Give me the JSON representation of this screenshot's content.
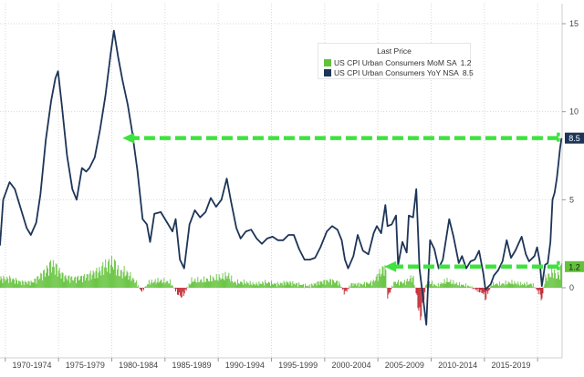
{
  "chart_data": {
    "type": "line",
    "x_start_year": 1969.5,
    "x_end_year": 2022.3,
    "categories": [
      "1970-1974",
      "1975-1979",
      "1980-1984",
      "1985-1989",
      "1990-1994",
      "1995-1999",
      "2000-2004",
      "2005-2009",
      "2010-2014",
      "2015-2019"
    ],
    "y_ticks": [
      15,
      10,
      5,
      0
    ],
    "ylim": [
      -2.5,
      15.5
    ],
    "grid": true,
    "legend": {
      "title": "Last Price",
      "placement": "top-right",
      "entries": [
        {
          "name": "US CPI Urban Consumers MoM SA",
          "value": "1.2",
          "color": "#62c23a"
        },
        {
          "name": "US CPI Urban Consumers YoY NSA",
          "value": "8.5",
          "color": "#1d3557"
        }
      ]
    },
    "series": [
      {
        "name": "US CPI Urban Consumers YoY NSA",
        "kind": "line",
        "color": "#1d3557",
        "last_value": "8.5",
        "points": [
          [
            1969.5,
            2.4
          ],
          [
            1969.8,
            5.0
          ],
          [
            1970.4,
            6.0
          ],
          [
            1970.9,
            5.6
          ],
          [
            1971.5,
            4.4
          ],
          [
            1972.0,
            3.4
          ],
          [
            1972.4,
            3.0
          ],
          [
            1972.9,
            3.7
          ],
          [
            1973.3,
            5.3
          ],
          [
            1973.8,
            8.4
          ],
          [
            1974.3,
            10.6
          ],
          [
            1974.7,
            11.9
          ],
          [
            1974.95,
            12.3
          ],
          [
            1975.3,
            10.4
          ],
          [
            1975.8,
            7.5
          ],
          [
            1976.3,
            5.6
          ],
          [
            1976.7,
            5.0
          ],
          [
            1977.2,
            6.8
          ],
          [
            1977.6,
            6.6
          ],
          [
            1977.9,
            6.8
          ],
          [
            1978.4,
            7.4
          ],
          [
            1978.9,
            9.0
          ],
          [
            1979.4,
            10.9
          ],
          [
            1979.9,
            13.3
          ],
          [
            1980.2,
            14.6
          ],
          [
            1980.6,
            13.1
          ],
          [
            1981.0,
            11.8
          ],
          [
            1981.5,
            10.4
          ],
          [
            1981.9,
            8.9
          ],
          [
            1982.4,
            6.7
          ],
          [
            1982.9,
            3.9
          ],
          [
            1983.3,
            3.6
          ],
          [
            1983.6,
            2.6
          ],
          [
            1984.0,
            4.2
          ],
          [
            1984.6,
            4.3
          ],
          [
            1985.2,
            3.7
          ],
          [
            1985.7,
            3.2
          ],
          [
            1986.0,
            3.9
          ],
          [
            1986.4,
            1.6
          ],
          [
            1986.8,
            1.1
          ],
          [
            1987.3,
            3.6
          ],
          [
            1987.8,
            4.4
          ],
          [
            1988.3,
            4.0
          ],
          [
            1988.8,
            4.3
          ],
          [
            1989.3,
            5.1
          ],
          [
            1989.8,
            4.6
          ],
          [
            1990.3,
            5.0
          ],
          [
            1990.8,
            6.2
          ],
          [
            1991.2,
            4.9
          ],
          [
            1991.7,
            3.4
          ],
          [
            1992.1,
            2.8
          ],
          [
            1992.6,
            3.2
          ],
          [
            1993.1,
            3.3
          ],
          [
            1993.6,
            2.8
          ],
          [
            1994.1,
            2.5
          ],
          [
            1994.6,
            2.8
          ],
          [
            1995.1,
            2.9
          ],
          [
            1995.6,
            2.7
          ],
          [
            1996.1,
            2.7
          ],
          [
            1996.6,
            3.0
          ],
          [
            1997.1,
            3.0
          ],
          [
            1997.6,
            2.2
          ],
          [
            1998.1,
            1.6
          ],
          [
            1998.6,
            1.6
          ],
          [
            1999.1,
            1.7
          ],
          [
            1999.6,
            2.3
          ],
          [
            2000.2,
            3.2
          ],
          [
            2000.7,
            3.5
          ],
          [
            2001.2,
            3.3
          ],
          [
            2001.6,
            2.7
          ],
          [
            2001.9,
            1.6
          ],
          [
            2002.2,
            1.1
          ],
          [
            2002.7,
            1.8
          ],
          [
            2003.1,
            3.0
          ],
          [
            2003.6,
            2.1
          ],
          [
            2004.1,
            1.9
          ],
          [
            2004.6,
            3.1
          ],
          [
            2004.9,
            3.5
          ],
          [
            2005.3,
            3.1
          ],
          [
            2005.7,
            4.7
          ],
          [
            2005.9,
            3.5
          ],
          [
            2006.3,
            3.6
          ],
          [
            2006.7,
            4.1
          ],
          [
            2006.9,
            1.3
          ],
          [
            2007.3,
            2.6
          ],
          [
            2007.7,
            2.0
          ],
          [
            2007.9,
            4.1
          ],
          [
            2008.3,
            4.0
          ],
          [
            2008.6,
            5.6
          ],
          [
            2008.9,
            1.1
          ],
          [
            2009.2,
            -0.4
          ],
          [
            2009.55,
            -2.1
          ],
          [
            2009.9,
            2.7
          ],
          [
            2010.3,
            2.2
          ],
          [
            2010.7,
            1.1
          ],
          [
            2011.1,
            1.6
          ],
          [
            2011.7,
            3.9
          ],
          [
            2012.1,
            2.9
          ],
          [
            2012.6,
            1.4
          ],
          [
            2012.9,
            1.8
          ],
          [
            2013.3,
            1.1
          ],
          [
            2013.7,
            1.5
          ],
          [
            2014.1,
            1.6
          ],
          [
            2014.5,
            2.1
          ],
          [
            2014.9,
            0.8
          ],
          [
            2015.1,
            -0.1
          ],
          [
            2015.6,
            0.2
          ],
          [
            2015.9,
            0.7
          ],
          [
            2016.3,
            1.0
          ],
          [
            2016.7,
            1.5
          ],
          [
            2017.1,
            2.7
          ],
          [
            2017.5,
            1.7
          ],
          [
            2017.9,
            2.1
          ],
          [
            2018.5,
            2.9
          ],
          [
            2018.9,
            1.9
          ],
          [
            2019.2,
            1.5
          ],
          [
            2019.7,
            1.8
          ],
          [
            2019.95,
            2.3
          ],
          [
            2020.2,
            1.5
          ],
          [
            2020.4,
            0.1
          ],
          [
            2020.7,
            1.3
          ],
          [
            2020.95,
            1.4
          ],
          [
            2021.2,
            2.6
          ],
          [
            2021.4,
            5.0
          ],
          [
            2021.6,
            5.4
          ],
          [
            2021.8,
            6.2
          ],
          [
            2021.95,
            7.0
          ],
          [
            2022.1,
            7.9
          ],
          [
            2022.25,
            8.5
          ]
        ]
      },
      {
        "name": "US CPI Urban Consumers MoM SA",
        "kind": "bar",
        "color_pos": "#62c23a",
        "color_neg": "#c0202a",
        "last_value": "1.2",
        "points": [
          [
            1969.5,
            0.5
          ],
          [
            1970.5,
            0.5
          ],
          [
            1971.5,
            0.3
          ],
          [
            1972.5,
            0.3
          ],
          [
            1973.2,
            0.6
          ],
          [
            1973.8,
            0.9
          ],
          [
            1974.3,
            1.3
          ],
          [
            1974.8,
            1.1
          ],
          [
            1975.5,
            0.6
          ],
          [
            1976.5,
            0.5
          ],
          [
            1977.5,
            0.6
          ],
          [
            1978.3,
            0.8
          ],
          [
            1978.8,
            0.9
          ],
          [
            1979.3,
            1.2
          ],
          [
            1979.8,
            1.3
          ],
          [
            1980.2,
            1.4
          ],
          [
            1980.7,
            0.8
          ],
          [
            1981.2,
            0.9
          ],
          [
            1981.8,
            0.6
          ],
          [
            1982.3,
            0.3
          ],
          [
            1982.8,
            -0.2
          ],
          [
            1983.5,
            0.3
          ],
          [
            1984.5,
            0.4
          ],
          [
            1985.5,
            0.3
          ],
          [
            1986.3,
            -0.4
          ],
          [
            1986.6,
            -0.5
          ],
          [
            1987.5,
            0.4
          ],
          [
            1988.5,
            0.4
          ],
          [
            1989.5,
            0.5
          ],
          [
            1990.5,
            0.6
          ],
          [
            1990.9,
            0.7
          ],
          [
            1991.5,
            0.3
          ],
          [
            1992.5,
            0.3
          ],
          [
            1993.5,
            0.2
          ],
          [
            1994.5,
            0.3
          ],
          [
            1995.5,
            0.2
          ],
          [
            1996.5,
            0.3
          ],
          [
            1997.5,
            0.2
          ],
          [
            1998.5,
            0.1
          ],
          [
            1999.5,
            0.3
          ],
          [
            2000.5,
            0.4
          ],
          [
            2001.3,
            0.3
          ],
          [
            2001.9,
            -0.3
          ],
          [
            2002.5,
            0.2
          ],
          [
            2003.5,
            0.2
          ],
          [
            2004.5,
            0.3
          ],
          [
            2005.7,
            1.2
          ],
          [
            2005.9,
            -0.6
          ],
          [
            2006.5,
            0.3
          ],
          [
            2007.5,
            0.3
          ],
          [
            2008.3,
            0.6
          ],
          [
            2008.8,
            -1.0
          ],
          [
            2008.9,
            -1.8
          ],
          [
            2009.1,
            -1.3
          ],
          [
            2009.6,
            0.4
          ],
          [
            2010.5,
            0.1
          ],
          [
            2011.5,
            0.4
          ],
          [
            2012.5,
            0.2
          ],
          [
            2013.5,
            0.1
          ],
          [
            2014.9,
            -0.3
          ],
          [
            2015.1,
            -0.6
          ],
          [
            2015.7,
            0.2
          ],
          [
            2016.5,
            0.2
          ],
          [
            2017.5,
            0.3
          ],
          [
            2018.5,
            0.2
          ],
          [
            2019.5,
            0.2
          ],
          [
            2020.3,
            -0.4
          ],
          [
            2020.4,
            -0.8
          ],
          [
            2020.7,
            0.5
          ],
          [
            2021.3,
            0.8
          ],
          [
            2021.5,
            0.9
          ],
          [
            2021.8,
            0.6
          ],
          [
            2022.1,
            0.8
          ],
          [
            2022.25,
            1.2
          ]
        ]
      }
    ],
    "annotations": [
      {
        "kind": "dashed-arrow",
        "color": "#3fe23f",
        "from_year": 2021.95,
        "to_year": 1981.0,
        "y": 8.5
      },
      {
        "kind": "dashed-arrow",
        "color": "#3fe23f",
        "from_year": 2021.95,
        "to_year": 2005.6,
        "y": 1.2
      }
    ],
    "value_labels": [
      {
        "text": "8.5",
        "y": 8.5,
        "bg": "#1d3557",
        "fg": "#ffffff"
      },
      {
        "text": "1.2",
        "y": 1.2,
        "bg": "#62c23a",
        "fg": "#1a1a1a"
      }
    ]
  }
}
